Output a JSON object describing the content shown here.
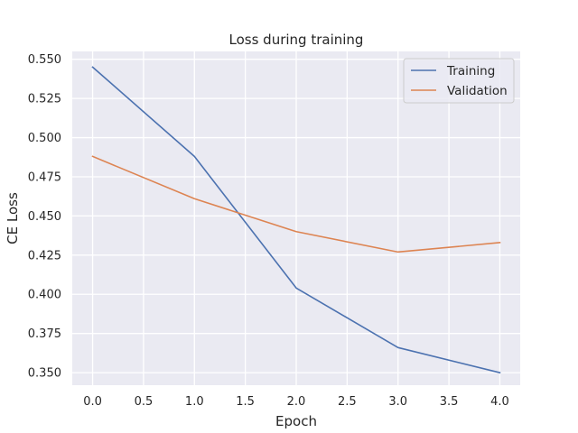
{
  "chart_data": {
    "type": "line",
    "title": "Loss during training",
    "xlabel": "Epoch",
    "ylabel": "CE Loss",
    "x": [
      0,
      1,
      2,
      3,
      4
    ],
    "xlim": [
      -0.2,
      4.2
    ],
    "ylim": [
      0.342,
      0.555
    ],
    "xticks": [
      0.0,
      0.5,
      1.0,
      1.5,
      2.0,
      2.5,
      3.0,
      3.5,
      4.0
    ],
    "xtick_labels": [
      "0.0",
      "0.5",
      "1.0",
      "1.5",
      "2.0",
      "2.5",
      "3.0",
      "3.5",
      "4.0"
    ],
    "yticks": [
      0.35,
      0.375,
      0.4,
      0.425,
      0.45,
      0.475,
      0.5,
      0.525,
      0.55
    ],
    "ytick_labels": [
      "0.350",
      "0.375",
      "0.400",
      "0.425",
      "0.450",
      "0.475",
      "0.500",
      "0.525",
      "0.550"
    ],
    "grid": true,
    "legend": "top-right",
    "background_color": "#eaeaf2",
    "grid_color": "#ffffff",
    "series": [
      {
        "name": "Training",
        "color": "#4c72b0",
        "values": [
          0.545,
          0.488,
          0.404,
          0.366,
          0.35
        ]
      },
      {
        "name": "Validation",
        "color": "#dd8452",
        "values": [
          0.488,
          0.461,
          0.44,
          0.427,
          0.433
        ]
      }
    ]
  }
}
